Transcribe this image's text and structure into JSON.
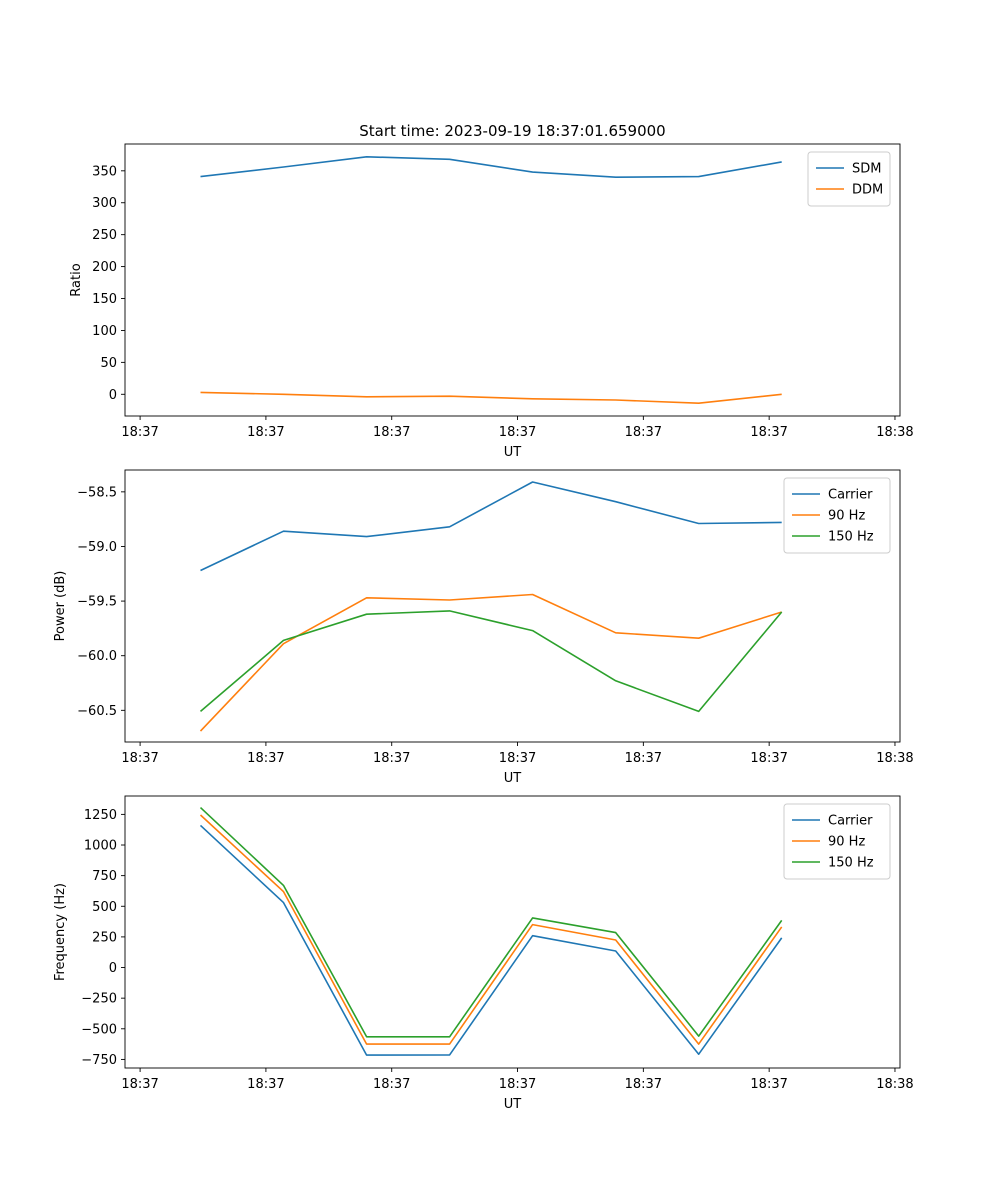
{
  "figure": {
    "title": "Start time: 2023-09-19 18:37:01.659000"
  },
  "x_axis": {
    "label": "UT",
    "ticks": [
      0,
      5,
      10,
      15,
      20,
      25,
      30
    ],
    "tick_labels": [
      "18:37",
      "18:37",
      "18:37",
      "18:37",
      "18:37",
      "18:37",
      "18:38"
    ],
    "xlim": [
      -0.6,
      30.2
    ]
  },
  "chart_data": [
    {
      "type": "line",
      "title": "Start time: 2023-09-19 18:37:01.659000",
      "xlabel": "UT",
      "ylabel": "Ratio",
      "ylim": [
        -34,
        392
      ],
      "yticks": [
        0,
        50,
        100,
        150,
        200,
        250,
        300,
        350
      ],
      "legend": "top-right",
      "x": [
        2.4,
        5.7,
        9.0,
        12.3,
        15.6,
        18.9,
        22.2,
        25.5
      ],
      "series": [
        {
          "name": "SDM",
          "color": "#1f77b4",
          "values": [
            341,
            356,
            372,
            368,
            348,
            340,
            341,
            364
          ]
        },
        {
          "name": "DDM",
          "color": "#ff7f0e",
          "values": [
            3,
            0,
            -4,
            -3,
            -7,
            -9,
            -14,
            0
          ]
        }
      ]
    },
    {
      "type": "line",
      "title": "",
      "xlabel": "UT",
      "ylabel": "Power (dB)",
      "ylim": [
        -60.79,
        -58.3
      ],
      "yticks": [
        -60.5,
        -60.0,
        -59.5,
        -59.0,
        -58.5
      ],
      "ytick_labels": [
        "−60.5",
        "−60.0",
        "−59.5",
        "−59.0",
        "−58.5"
      ],
      "legend": "top-right",
      "x": [
        2.4,
        5.7,
        9.0,
        12.3,
        15.6,
        18.9,
        22.2,
        25.5
      ],
      "series": [
        {
          "name": "Carrier",
          "color": "#1f77b4",
          "values": [
            -59.22,
            -58.86,
            -58.91,
            -58.82,
            -58.41,
            -58.59,
            -58.79,
            -58.78
          ]
        },
        {
          "name": "90 Hz",
          "color": "#ff7f0e",
          "values": [
            -60.69,
            -59.89,
            -59.47,
            -59.49,
            -59.44,
            -59.79,
            -59.84,
            -59.6
          ]
        },
        {
          "name": "150 Hz",
          "color": "#2ca02c",
          "values": [
            -60.51,
            -59.86,
            -59.62,
            -59.59,
            -59.77,
            -60.23,
            -60.51,
            -59.6
          ]
        }
      ]
    },
    {
      "type": "line",
      "title": "",
      "xlabel": "UT",
      "ylabel": "Frequency (Hz)",
      "ylim": [
        -820,
        1400
      ],
      "yticks": [
        -750,
        -500,
        -250,
        0,
        250,
        500,
        750,
        1000,
        1250
      ],
      "ytick_labels": [
        "−750",
        "−500",
        "−250",
        "0",
        "250",
        "500",
        "750",
        "1000",
        "1250"
      ],
      "legend": "top-right",
      "x": [
        2.4,
        5.7,
        9.0,
        12.3,
        15.6,
        18.9,
        22.2,
        25.5
      ],
      "series": [
        {
          "name": "Carrier",
          "color": "#1f77b4",
          "values": [
            1160,
            530,
            -715,
            -713,
            260,
            135,
            -707,
            242
          ]
        },
        {
          "name": "90 Hz",
          "color": "#ff7f0e",
          "values": [
            1245,
            620,
            -625,
            -625,
            350,
            225,
            -625,
            332
          ]
        },
        {
          "name": "150 Hz",
          "color": "#2ca02c",
          "values": [
            1305,
            670,
            -565,
            -565,
            405,
            285,
            -560,
            385
          ]
        }
      ]
    }
  ]
}
